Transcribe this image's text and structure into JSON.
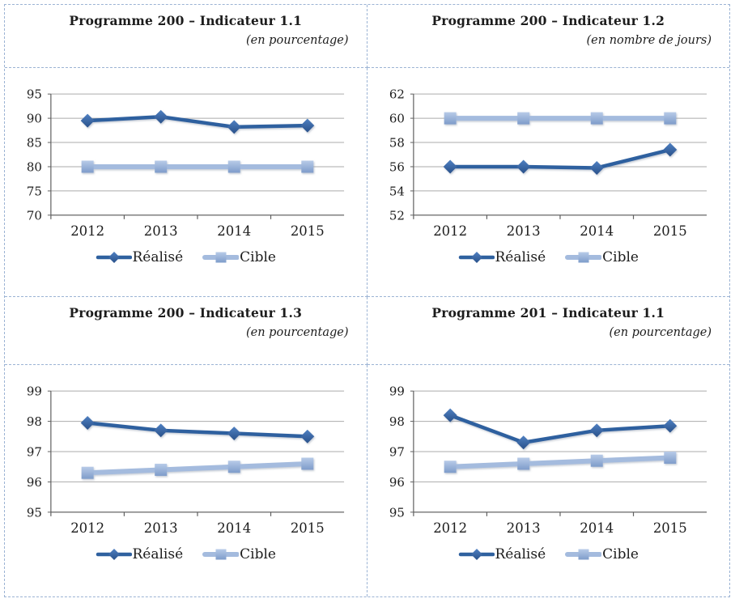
{
  "colors": {
    "border": "#9bb3d4",
    "text": "#1c1c1c",
    "grid": "#ababab",
    "axis": "#606060",
    "realise_line": "#2f619f",
    "cible_line": "#a4bbde",
    "marker_dark_hi": "#4f80c2",
    "marker_dark_lo": "#29518a",
    "marker_light_hi": "#b8cbe8",
    "marker_light_lo": "#7e9cca"
  },
  "chart_data": [
    {
      "type": "line",
      "title": "Programme 200 – Indicateur 1.1",
      "subtitle": "(en pourcentage)",
      "categories": [
        "2012",
        "2013",
        "2014",
        "2015"
      ],
      "series": [
        {
          "name": "Réalisé",
          "marker": "diamond",
          "color": "#2f619f",
          "values": [
            89.5,
            90.3,
            88.2,
            88.5
          ]
        },
        {
          "name": "Cible",
          "marker": "square",
          "color": "#95b3d7",
          "values": [
            80,
            80,
            80,
            80
          ]
        }
      ],
      "ylim": [
        70,
        95
      ],
      "yticks": [
        70,
        75,
        80,
        85,
        90,
        95
      ],
      "xlabel": "",
      "ylabel": "",
      "grid": true,
      "legend_position": "bottom"
    },
    {
      "type": "line",
      "title": "Programme 200 – Indicateur 1.2",
      "subtitle": "(en nombre de jours)",
      "categories": [
        "2012",
        "2013",
        "2014",
        "2015"
      ],
      "series": [
        {
          "name": "Réalisé",
          "marker": "diamond",
          "color": "#2f619f",
          "values": [
            56,
            56,
            55.9,
            57.4
          ]
        },
        {
          "name": "Cible",
          "marker": "square",
          "color": "#95b3d7",
          "values": [
            60,
            60,
            60,
            60
          ]
        }
      ],
      "ylim": [
        52,
        62
      ],
      "yticks": [
        52,
        54,
        56,
        58,
        60,
        62
      ],
      "xlabel": "",
      "ylabel": "",
      "grid": true,
      "legend_position": "bottom"
    },
    {
      "type": "line",
      "title": "Programme 200 – Indicateur 1.3",
      "subtitle": "(en pourcentage)",
      "categories": [
        "2012",
        "2013",
        "2014",
        "2015"
      ],
      "series": [
        {
          "name": "Réalisé",
          "marker": "diamond",
          "color": "#2f619f",
          "values": [
            97.95,
            97.7,
            97.6,
            97.5
          ]
        },
        {
          "name": "Cible",
          "marker": "square",
          "color": "#95b3d7",
          "values": [
            96.3,
            96.4,
            96.5,
            96.6
          ]
        }
      ],
      "ylim": [
        95,
        99
      ],
      "yticks": [
        95,
        96,
        97,
        98,
        99
      ],
      "xlabel": "",
      "ylabel": "",
      "grid": true,
      "legend_position": "bottom"
    },
    {
      "type": "line",
      "title": "Programme 201 – Indicateur 1.1",
      "subtitle": "(en pourcentage)",
      "categories": [
        "2012",
        "2013",
        "2014",
        "2015"
      ],
      "series": [
        {
          "name": "Réalisé",
          "marker": "diamond",
          "color": "#2f619f",
          "values": [
            98.2,
            97.3,
            97.7,
            97.85
          ]
        },
        {
          "name": "Cible",
          "marker": "square",
          "color": "#95b3d7",
          "values": [
            96.5,
            96.6,
            96.7,
            96.8
          ]
        }
      ],
      "ylim": [
        95,
        99
      ],
      "yticks": [
        95,
        96,
        97,
        98,
        99
      ],
      "xlabel": "",
      "ylabel": "",
      "grid": true,
      "legend_position": "bottom"
    }
  ]
}
